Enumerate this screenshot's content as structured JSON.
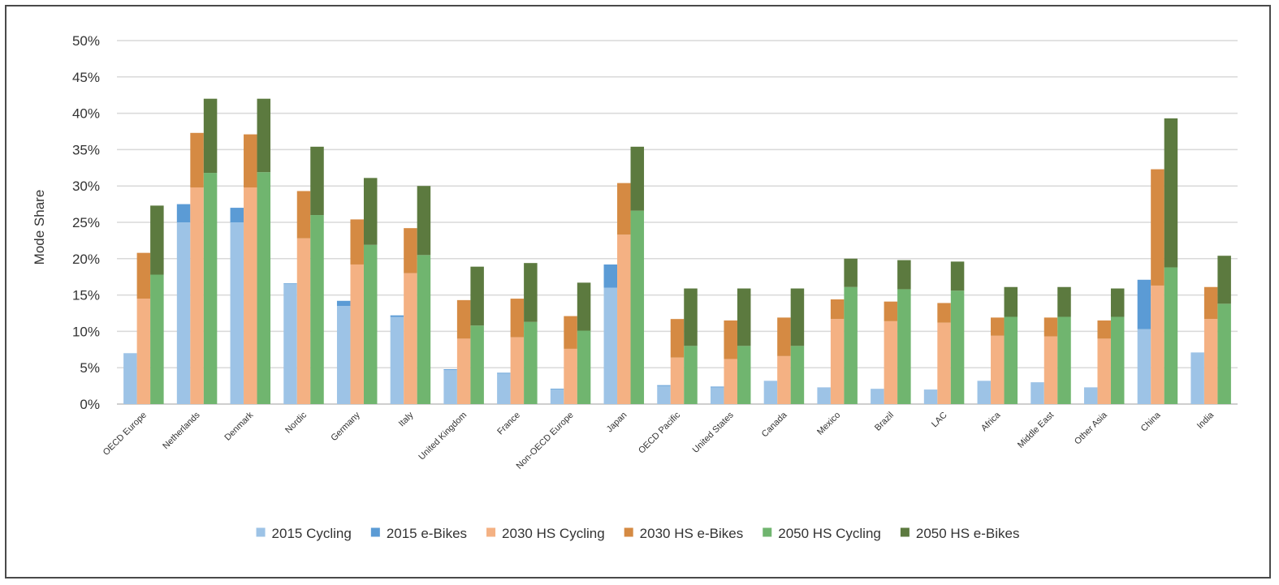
{
  "chart_data": {
    "type": "bar",
    "stacked": true,
    "ylabel": "Mode Share",
    "xlabel": "",
    "ylim": [
      0,
      50
    ],
    "yticks": [
      "0%",
      "5%",
      "10%",
      "15%",
      "20%",
      "25%",
      "30%",
      "35%",
      "40%",
      "45%",
      "50%"
    ],
    "grid": true,
    "legend_position": "bottom",
    "categories": [
      "OECD Europe",
      "Netherlands",
      "Denmark",
      "Nordic",
      "Germany",
      "Italy",
      "United Kingdom",
      "France",
      "Non-OECD Europe",
      "Japan",
      "OECD Pacific",
      "United States",
      "Canada",
      "Mexico",
      "Brazil",
      "LAC",
      "Africa",
      "Middle East",
      "Other Asia",
      "China",
      "India"
    ],
    "groups": [
      {
        "name": "2015",
        "series": [
          {
            "name": "2015 Cycling",
            "color": "#9dc3e6",
            "values": [
              7.0,
              25.0,
              25.0,
              16.5,
              13.5,
              12.0,
              4.7,
              4.2,
              2.0,
              16.0,
              2.5,
              2.3,
              3.2,
              2.3,
              2.1,
              2.0,
              3.2,
              3.0,
              2.3,
              10.3,
              7.1
            ]
          },
          {
            "name": "2015 e-Bikes",
            "color": "#5b9bd5",
            "values": [
              0.0,
              2.5,
              2.0,
              0.1,
              0.7,
              0.2,
              0.1,
              0.1,
              0.1,
              3.2,
              0.1,
              0.1,
              0.0,
              0.0,
              0.0,
              0.0,
              0.0,
              0.0,
              0.0,
              6.8,
              0.0
            ]
          }
        ]
      },
      {
        "name": "2030",
        "series": [
          {
            "name": "2030 HS Cycling",
            "color": "#f4b183",
            "values": [
              14.5,
              29.8,
              29.8,
              22.8,
              19.2,
              18.0,
              9.0,
              9.2,
              7.6,
              23.3,
              6.4,
              6.2,
              6.6,
              11.7,
              11.4,
              11.2,
              9.4,
              9.3,
              9.0,
              16.3,
              11.7
            ]
          },
          {
            "name": "2030 HS e-Bikes",
            "color": "#d58a43",
            "values": [
              6.3,
              7.5,
              7.3,
              6.5,
              6.2,
              6.2,
              5.3,
              5.3,
              4.5,
              7.1,
              5.3,
              5.3,
              5.3,
              2.7,
              2.7,
              2.7,
              2.5,
              2.6,
              2.5,
              16.0,
              4.4
            ]
          }
        ]
      },
      {
        "name": "2050",
        "series": [
          {
            "name": "2050 HS Cycling",
            "color": "#70b56f",
            "values": [
              17.8,
              31.8,
              31.9,
              26.0,
              21.9,
              20.5,
              10.8,
              11.3,
              10.1,
              26.6,
              8.0,
              8.0,
              8.0,
              16.1,
              15.8,
              15.6,
              12.0,
              12.0,
              12.0,
              18.8,
              13.8
            ]
          },
          {
            "name": "2050 HS e-Bikes",
            "color": "#5c7a3f",
            "values": [
              9.5,
              10.2,
              10.1,
              9.4,
              9.2,
              9.5,
              8.1,
              8.1,
              6.6,
              8.8,
              7.9,
              7.9,
              7.9,
              3.9,
              4.0,
              4.0,
              4.1,
              4.1,
              3.9,
              20.5,
              6.6
            ]
          }
        ]
      }
    ],
    "legend": [
      "2015 Cycling",
      "2015 e-Bikes",
      "2030 HS Cycling",
      "2030 HS e-Bikes",
      "2050 HS Cycling",
      "2050 HS e-Bikes"
    ]
  }
}
